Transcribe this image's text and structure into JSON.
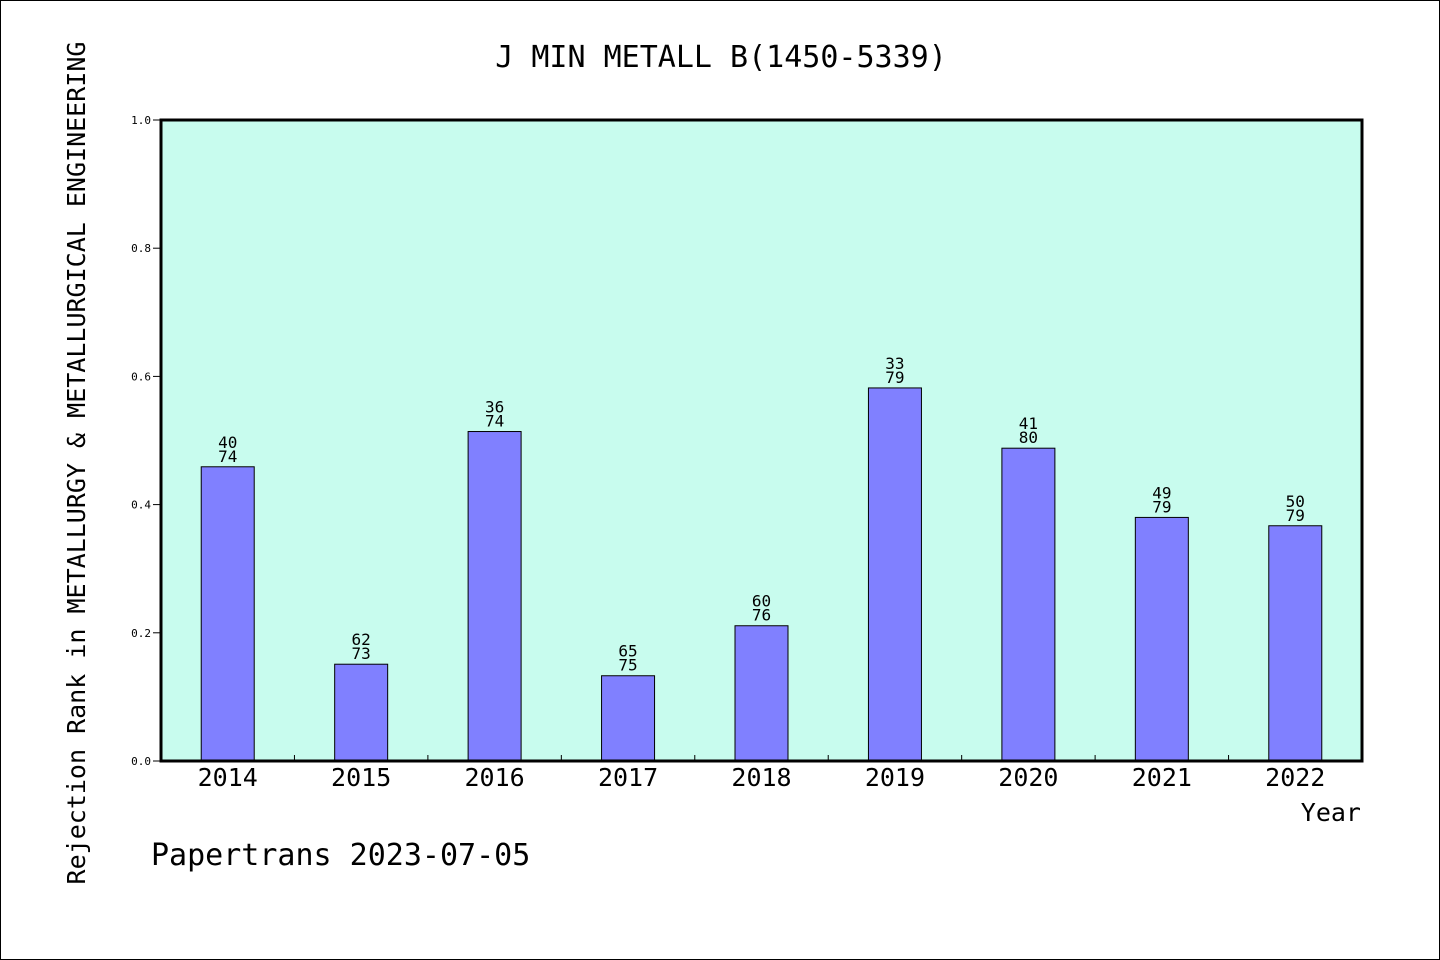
{
  "chart_data": {
    "type": "bar",
    "title": "J MIN METALL B(1450-5339)",
    "xlabel": "Year",
    "ylabel": "Rejection Rank in METALLURGY & METALLURGICAL ENGINEERING",
    "categories": [
      "2014",
      "2015",
      "2016",
      "2017",
      "2018",
      "2019",
      "2020",
      "2021",
      "2022"
    ],
    "values": [
      0.459,
      0.151,
      0.514,
      0.133,
      0.211,
      0.582,
      0.488,
      0.38,
      0.367
    ],
    "rank_labels": [
      {
        "top": "40",
        "bottom": "74"
      },
      {
        "top": "62",
        "bottom": "73"
      },
      {
        "top": "36",
        "bottom": "74"
      },
      {
        "top": "65",
        "bottom": "75"
      },
      {
        "top": "60",
        "bottom": "76"
      },
      {
        "top": "33",
        "bottom": "79"
      },
      {
        "top": "41",
        "bottom": "80"
      },
      {
        "top": "49",
        "bottom": "79"
      },
      {
        "top": "50",
        "bottom": "79"
      }
    ],
    "ylim": [
      0,
      1.0
    ],
    "yticks": [
      "0.0",
      "0.2",
      "0.4",
      "0.6",
      "0.8",
      "1.0"
    ],
    "grid": false,
    "colors": {
      "plot_background": "#c8fcee",
      "bar_fill": "#8080ff",
      "bar_stroke": "#000000"
    }
  },
  "footer": {
    "watermark": "Papertrans 2023-07-05"
  }
}
